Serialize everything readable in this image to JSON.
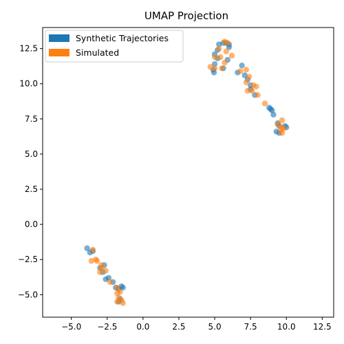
{
  "chart_data": {
    "type": "scatter",
    "title": "UMAP Projection",
    "xlabel": "",
    "ylabel": "",
    "xlim": [
      -7,
      13.3
    ],
    "ylim": [
      -6.6,
      14
    ],
    "grid": false,
    "legend_position": "top-left",
    "xticks": [
      -5.0,
      -2.5,
      0.0,
      2.5,
      5.0,
      7.5,
      10.0,
      12.5
    ],
    "xtick_labels": [
      "−5.0",
      "−2.5",
      "0.0",
      "2.5",
      "5.0",
      "7.5",
      "10.0",
      "12.5"
    ],
    "yticks": [
      -5.0,
      -2.5,
      0.0,
      2.5,
      5.0,
      7.5,
      10.0,
      12.5
    ],
    "ytick_labels": [
      "−5.0",
      "−2.5",
      "0.0",
      "2.5",
      "5.0",
      "7.5",
      "10.0",
      "12.5"
    ],
    "series": [
      {
        "name": "Synthetic Trajectories",
        "color": "#1f77b4",
        "points": [
          [
            5.3,
            12.8
          ],
          [
            5.6,
            12.9
          ],
          [
            5.8,
            12.9
          ],
          [
            6.0,
            12.8
          ],
          [
            6.0,
            12.6
          ],
          [
            5.2,
            12.4
          ],
          [
            5.0,
            12.1
          ],
          [
            5.2,
            11.8
          ],
          [
            5.9,
            11.7
          ],
          [
            5.0,
            11.4
          ],
          [
            5.6,
            11.1
          ],
          [
            4.9,
            11.0
          ],
          [
            4.95,
            10.8
          ],
          [
            6.6,
            10.8
          ],
          [
            6.9,
            11.3
          ],
          [
            7.1,
            10.6
          ],
          [
            7.3,
            10.3
          ],
          [
            7.5,
            9.9
          ],
          [
            7.5,
            9.6
          ],
          [
            7.8,
            9.2
          ],
          [
            8.8,
            8.3
          ],
          [
            8.9,
            8.2
          ],
          [
            9.0,
            8.1
          ],
          [
            9.1,
            7.8
          ],
          [
            9.4,
            7.2
          ],
          [
            9.5,
            7.0
          ],
          [
            9.9,
            7.0
          ],
          [
            10.0,
            6.9
          ],
          [
            9.3,
            6.6
          ],
          [
            9.5,
            6.5
          ],
          [
            -3.9,
            -1.7
          ],
          [
            -3.7,
            -2.0
          ],
          [
            -3.5,
            -1.9
          ],
          [
            -2.7,
            -2.9
          ],
          [
            -3.0,
            -3.1
          ],
          [
            -2.8,
            -3.4
          ],
          [
            -2.4,
            -3.8
          ],
          [
            -2.6,
            -3.9
          ],
          [
            -2.1,
            -4.1
          ],
          [
            -1.9,
            -4.5
          ],
          [
            -1.5,
            -4.4
          ],
          [
            -1.4,
            -4.5
          ],
          [
            -1.7,
            -4.6
          ],
          [
            -1.6,
            -5.3
          ],
          [
            -1.7,
            -5.5
          ]
        ]
      },
      {
        "name": "Simulated",
        "color": "#ff7f0e",
        "points": [
          [
            5.7,
            13.0
          ],
          [
            5.9,
            12.9
          ],
          [
            5.3,
            12.5
          ],
          [
            6.2,
            12.0
          ],
          [
            5.0,
            11.9
          ],
          [
            5.8,
            12.3
          ],
          [
            5.4,
            11.9
          ],
          [
            5.7,
            11.5
          ],
          [
            4.7,
            11.2
          ],
          [
            5.0,
            11.1
          ],
          [
            5.5,
            11.1
          ],
          [
            6.8,
            10.9
          ],
          [
            7.2,
            11.0
          ],
          [
            7.4,
            10.5
          ],
          [
            7.2,
            10.1
          ],
          [
            7.7,
            9.9
          ],
          [
            7.9,
            9.8
          ],
          [
            7.3,
            9.5
          ],
          [
            7.6,
            9.5
          ],
          [
            8.0,
            9.2
          ],
          [
            8.5,
            8.6
          ],
          [
            9.7,
            7.4
          ],
          [
            9.4,
            7.1
          ],
          [
            9.7,
            6.9
          ],
          [
            9.6,
            6.7
          ],
          [
            9.7,
            6.5
          ],
          [
            9.8,
            6.8
          ],
          [
            -3.5,
            -1.8
          ],
          [
            -3.6,
            -2.6
          ],
          [
            -3.3,
            -2.5
          ],
          [
            -3.2,
            -2.6
          ],
          [
            -2.9,
            -2.9
          ],
          [
            -2.9,
            -3.1
          ],
          [
            -2.6,
            -3.3
          ],
          [
            -3.0,
            -3.4
          ],
          [
            -2.3,
            -4.1
          ],
          [
            -1.8,
            -4.5
          ],
          [
            -1.6,
            -4.8
          ],
          [
            -1.8,
            -4.9
          ],
          [
            -1.7,
            -5.2
          ],
          [
            -1.5,
            -5.4
          ],
          [
            -1.4,
            -5.6
          ],
          [
            -1.8,
            -5.5
          ]
        ]
      }
    ]
  }
}
